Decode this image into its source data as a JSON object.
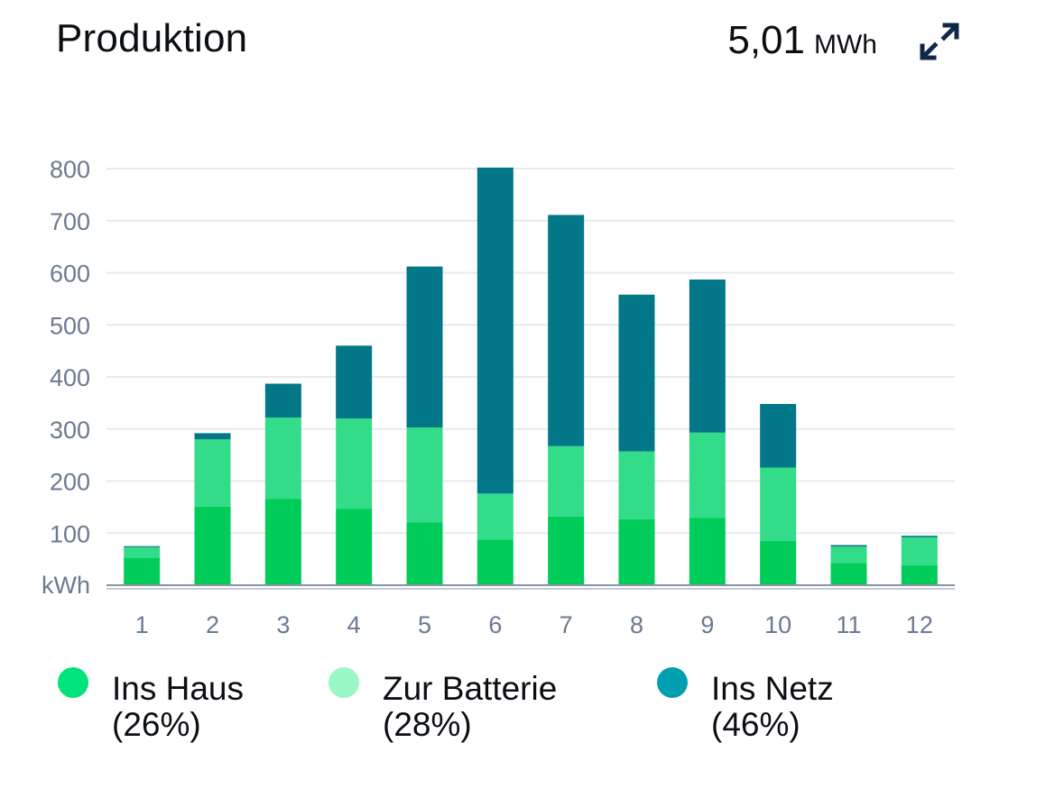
{
  "header": {
    "title": "Produktion",
    "total_value": "5,01",
    "total_unit": "MWh",
    "expand_icon": "expand-arrows-icon"
  },
  "colors": {
    "haus": "#00cc5a",
    "batterie": "#33dc88",
    "netz": "#017788",
    "legend_haus": "#00e27a",
    "legend_batterie": "#9af8c8",
    "legend_netz": "#009fb0",
    "grid": "#e8eaed",
    "axis_text": "#6b7a90",
    "icon": "#0f2848"
  },
  "chart_data": {
    "type": "bar",
    "stacked": true,
    "categories": [
      "1",
      "2",
      "3",
      "4",
      "5",
      "6",
      "7",
      "8",
      "9",
      "10",
      "11",
      "12"
    ],
    "series": [
      {
        "name": "Ins Haus",
        "values": [
          52,
          151,
          166,
          147,
          121,
          88,
          132,
          127,
          129,
          85,
          43,
          38
        ]
      },
      {
        "name": "Zur Batterie",
        "values": [
          21,
          129,
          156,
          173,
          182,
          88,
          135,
          130,
          164,
          141,
          31,
          54
        ]
      },
      {
        "name": "Ins Netz",
        "values": [
          2,
          12,
          65,
          140,
          309,
          626,
          444,
          301,
          294,
          122,
          3,
          3
        ]
      }
    ],
    "ylabel": "kWh",
    "yticks": [
      100,
      200,
      300,
      400,
      500,
      600,
      700,
      800
    ],
    "ylim": [
      0,
      800
    ],
    "grid": true,
    "legend_position": "bottom"
  },
  "legend": [
    {
      "label": "Ins Haus",
      "percent": "(26%)"
    },
    {
      "label": "Zur Batterie",
      "percent": "(28%)"
    },
    {
      "label": "Ins Netz",
      "percent": "(46%)"
    }
  ]
}
